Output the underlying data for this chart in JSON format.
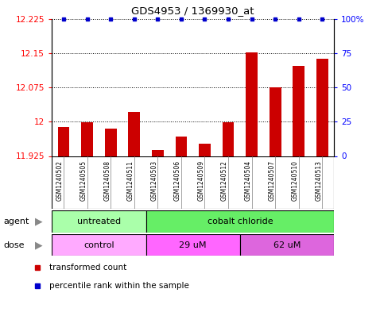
{
  "title": "GDS4953 / 1369930_at",
  "samples": [
    "GSM1240502",
    "GSM1240505",
    "GSM1240508",
    "GSM1240511",
    "GSM1240503",
    "GSM1240506",
    "GSM1240509",
    "GSM1240512",
    "GSM1240504",
    "GSM1240507",
    "GSM1240510",
    "GSM1240513"
  ],
  "bar_values": [
    11.988,
    11.998,
    11.985,
    12.022,
    11.938,
    11.968,
    11.952,
    11.998,
    12.152,
    12.075,
    12.122,
    12.138
  ],
  "bar_color": "#cc0000",
  "percentile_color": "#0000cc",
  "ylim_left": [
    11.925,
    12.225
  ],
  "yticks_left": [
    11.925,
    12.0,
    12.075,
    12.15,
    12.225
  ],
  "ytick_labels_left": [
    "11.925",
    "12",
    "12.075",
    "12.15",
    "12.225"
  ],
  "ylim_right": [
    0,
    100
  ],
  "yticks_right": [
    0,
    25,
    50,
    75,
    100
  ],
  "ytick_labels_right": [
    "0",
    "25",
    "50",
    "75",
    "100%"
  ],
  "agent_groups": [
    {
      "label": "untreated",
      "start": 0,
      "end": 4,
      "color": "#aaffaa"
    },
    {
      "label": "cobalt chloride",
      "start": 4,
      "end": 12,
      "color": "#66ee66"
    }
  ],
  "dose_groups": [
    {
      "label": "control",
      "start": 0,
      "end": 4,
      "color": "#ffaaff"
    },
    {
      "label": "29 uM",
      "start": 4,
      "end": 8,
      "color": "#ff66ff"
    },
    {
      "label": "62 uM",
      "start": 8,
      "end": 12,
      "color": "#dd66dd"
    }
  ],
  "legend_items": [
    {
      "label": "transformed count",
      "color": "#cc0000"
    },
    {
      "label": "percentile rank within the sample",
      "color": "#0000cc"
    }
  ],
  "background_color": "#ffffff",
  "sample_bg_color": "#cccccc",
  "group_dividers": [
    3.5,
    7.5
  ]
}
